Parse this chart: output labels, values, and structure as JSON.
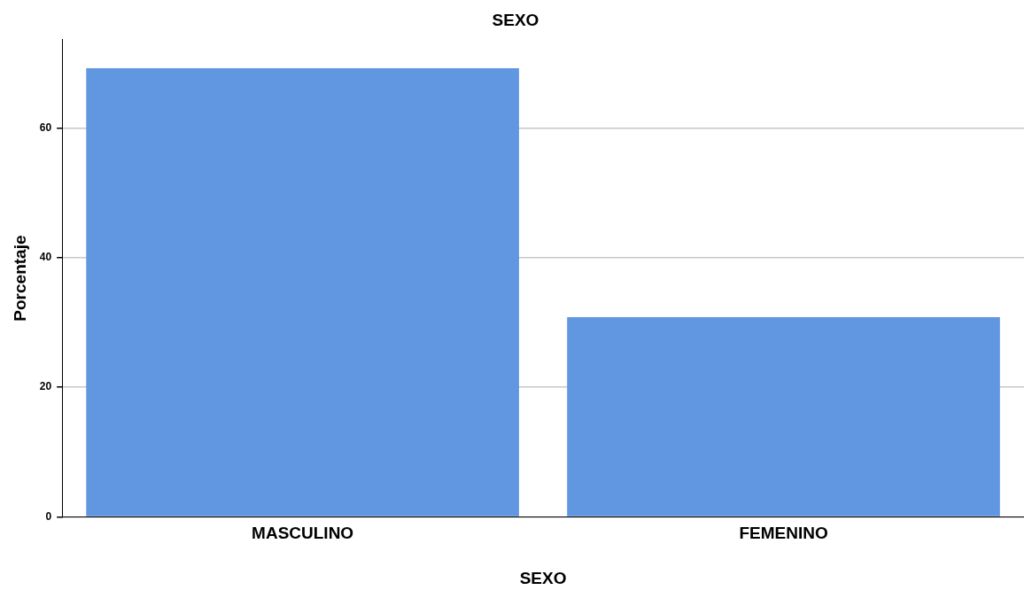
{
  "chart_data": {
    "type": "bar",
    "title": "SEXO",
    "xlabel": "SEXO",
    "ylabel": "Porcentaje",
    "categories": [
      "MASCULINO",
      "FEMENINO"
    ],
    "values": [
      69.2,
      30.8
    ],
    "color": "#6197e0",
    "ylim": [
      0,
      73.6
    ],
    "yticks": [
      0,
      20,
      40,
      60
    ],
    "grid": "y",
    "legend": false
  }
}
